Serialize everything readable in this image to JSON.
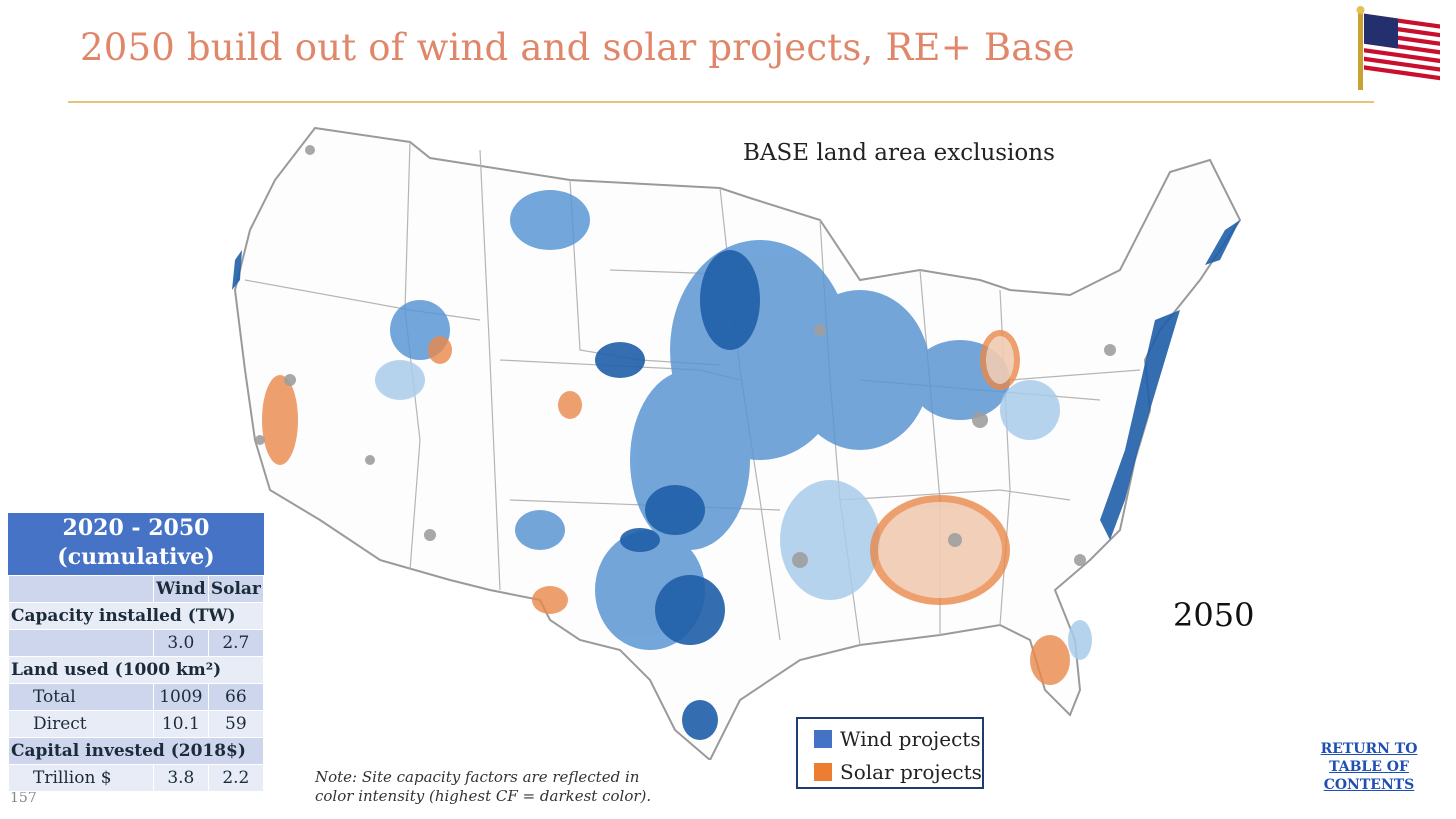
{
  "slide": {
    "title": "2050 build out of wind and solar projects, RE+ Base",
    "page_number": "157",
    "return_link": "RETURN TO TABLE OF CONTENTS",
    "return_lines": [
      "RETURN TO",
      "TABLE OF",
      "CONTENTS"
    ]
  },
  "map": {
    "subtitle": "BASE land area exclusions",
    "year": "2050",
    "legend": [
      {
        "label": "Wind projects",
        "color": "#4472c4"
      },
      {
        "label": "Solar projects",
        "color": "#ed7d31"
      }
    ],
    "note_lines": [
      "Note: Site capacity factors are reflected in",
      "color intensity (highest CF = darkest color)."
    ]
  },
  "stats": {
    "heading_lines": [
      "2020 - 2050",
      "(cumulative)"
    ],
    "col_headers": [
      "Wind",
      "Solar"
    ],
    "sections": [
      {
        "title": "Capacity installed (TW)",
        "rows": [
          {
            "label": "",
            "wind": "3.0",
            "solar": "2.7"
          }
        ]
      },
      {
        "title": "Land used (1000 km²)",
        "rows": [
          {
            "label": "Total",
            "wind": "1009",
            "solar": "66"
          },
          {
            "label": "Direct",
            "wind": "10.1",
            "solar": "59"
          }
        ]
      },
      {
        "title": "Capital invested (2018$)",
        "rows": [
          {
            "label": "Trillion $",
            "wind": "3.8",
            "solar": "2.2"
          }
        ]
      }
    ]
  }
}
